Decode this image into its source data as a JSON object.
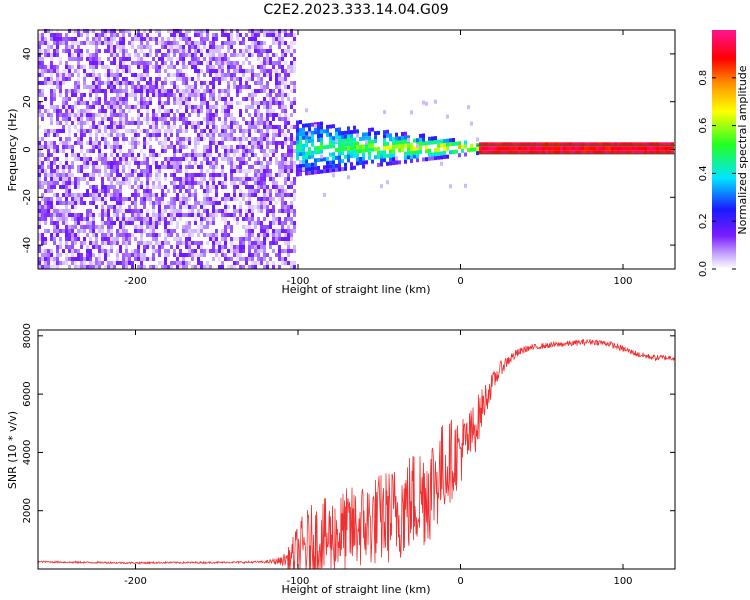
{
  "title": "C2E2.2023.333.14.04.G09",
  "chart_data": [
    {
      "type": "heatmap",
      "xlabel": "Height of straight line (km)",
      "ylabel": "Frequency (Hz)",
      "xlim": [
        -260,
        132
      ],
      "ylim": [
        -50,
        50
      ],
      "x_ticks": [
        -200,
        -100,
        0,
        100
      ],
      "y_ticks": [
        -40,
        -20,
        0,
        20,
        40
      ],
      "colorbar": {
        "label": "Normalized spectral amplitude",
        "range": [
          0,
          1
        ],
        "ticks": [
          0.0,
          0.2,
          0.4,
          0.6,
          0.8
        ],
        "colormap": [
          "#ffffff",
          "#c8a8ff",
          "#7a1cff",
          "#1a1aff",
          "#00e5ff",
          "#22ff22",
          "#ffff00",
          "#ff8c00",
          "#ff0000",
          "#ff1493"
        ]
      },
      "regions": [
        {
          "x_range": [
            -260,
            -103
          ],
          "frequency_range": [
            -50,
            50
          ],
          "amplitude_range": [
            0.0,
            0.15
          ],
          "pattern": "broadband noise"
        },
        {
          "x_range": [
            -110,
            20
          ],
          "center_frequency": 0,
          "half_width_hz": [
            12,
            2
          ],
          "amplitude_range": [
            0.15,
            0.5
          ],
          "pattern": "narrowing signal band"
        },
        {
          "x_range": [
            10,
            132
          ],
          "center_frequency": 0,
          "half_width_hz": 1.5,
          "amplitude_range": [
            0.75,
            1.0
          ],
          "pattern": "steady carrier line"
        }
      ]
    },
    {
      "type": "line",
      "xlabel": "Height of straight line (km)",
      "ylabel": "SNR (10 * v/v)",
      "xlim": [
        -260,
        132
      ],
      "ylim": [
        0,
        8200
      ],
      "x_ticks": [
        -200,
        -100,
        0,
        100
      ],
      "y_ticks": [
        2000,
        4000,
        6000,
        8000
      ],
      "line_color": "#f03030",
      "series": [
        {
          "x": [
            -260,
            -240,
            -220,
            -200,
            -180,
            -160,
            -140,
            -120,
            -110,
            -105,
            -100,
            -95,
            -90,
            -80,
            -70,
            -60,
            -50,
            -40,
            -30,
            -20,
            -15,
            -10,
            -5,
            0,
            5,
            10,
            15,
            20,
            25,
            30,
            35,
            40,
            50,
            60,
            70,
            80,
            90,
            100,
            110,
            120,
            132
          ],
          "y": [
            250,
            230,
            220,
            210,
            220,
            220,
            230,
            240,
            280,
            380,
            500,
            750,
            900,
            1100,
            1300,
            1500,
            1700,
            1900,
            2300,
            2700,
            3100,
            3500,
            3800,
            4100,
            4400,
            5000,
            5800,
            6400,
            6900,
            7200,
            7400,
            7550,
            7650,
            7700,
            7750,
            7800,
            7750,
            7550,
            7350,
            7250,
            7250
          ],
          "noise": [
            30,
            30,
            30,
            30,
            30,
            30,
            30,
            40,
            150,
            450,
            1100,
            1300,
            1400,
            1400,
            1500,
            1500,
            1600,
            1700,
            1800,
            1900,
            1800,
            1600,
            1400,
            1200,
            1000,
            900,
            600,
            350,
            250,
            200,
            150,
            120,
            100,
            100,
            100,
            100,
            100,
            100,
            100,
            100,
            100
          ]
        }
      ]
    }
  ]
}
